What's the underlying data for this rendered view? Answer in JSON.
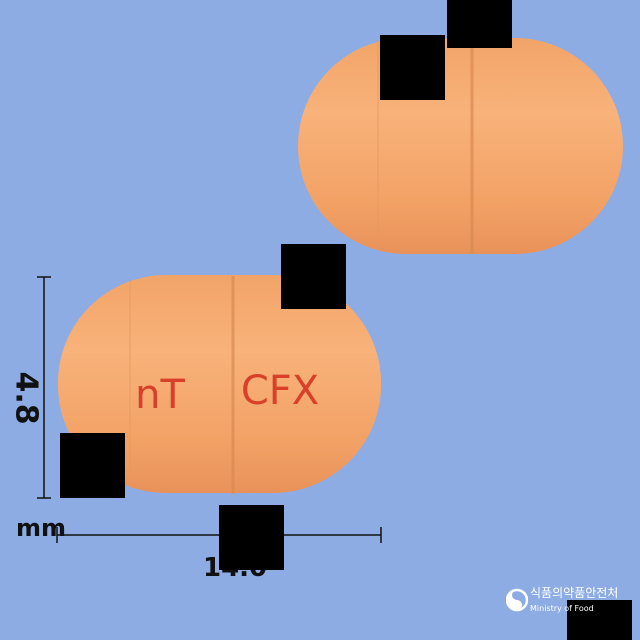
{
  "photo": {
    "background_color": "#8dace4",
    "capsule_color": "#f5a86a",
    "imprint_color": "#d8402a"
  },
  "capsule_front": {
    "imprint_left": "nT",
    "imprint_right": "CFX"
  },
  "dimensions": {
    "height_value": "4.8",
    "width_value": "14.0",
    "unit": "mm"
  },
  "logo": {
    "name": "식품의약품안전처",
    "subtitle": "Ministry of Food"
  }
}
